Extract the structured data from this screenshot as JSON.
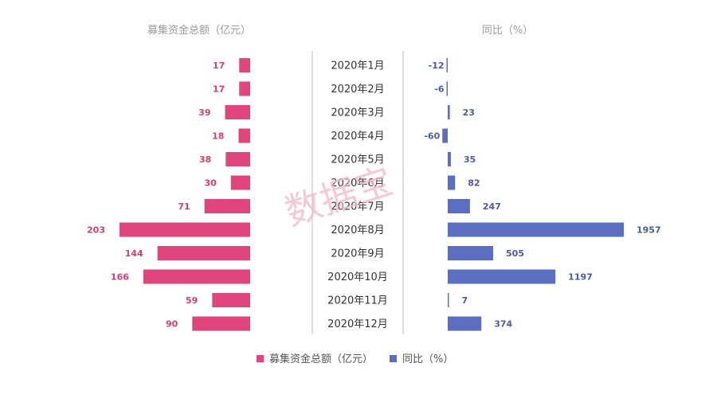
{
  "watermark": "数据宝",
  "chart_data": {
    "type": "bar",
    "orientation": "horizontal-butterfly",
    "categories": [
      "2020年1月",
      "2020年2月",
      "2020年3月",
      "2020年4月",
      "2020年5月",
      "2020年6月",
      "2020年7月",
      "2020年8月",
      "2020年9月",
      "2020年10月",
      "2020年11月",
      "2020年12月"
    ],
    "series": [
      {
        "name": "募集资金总额（亿元）",
        "color": "#e0457b",
        "values": [
          17,
          17,
          39,
          18,
          38,
          30,
          71,
          203,
          144,
          166,
          59,
          90
        ],
        "labels": [
          "17",
          "17",
          "39",
          "18",
          "38",
          "30",
          "71",
          "203",
          "144",
          "166",
          "59",
          "90"
        ]
      },
      {
        "name": "同比（%）",
        "color": "#5b6ec0",
        "values": [
          -12,
          -6,
          23,
          -60,
          35,
          82,
          247,
          1957,
          505,
          1197,
          7,
          374
        ],
        "labels": [
          "-12",
          "-6",
          "23",
          "-60",
          "35",
          "82",
          "247",
          "1957",
          "505",
          "1197",
          "7",
          "374"
        ]
      }
    ],
    "left_title": "募集资金总额（亿元）",
    "right_title": "同比（%）",
    "legend": {
      "position": "bottom",
      "items": [
        "募集资金总额（亿元）",
        "同比（%）"
      ]
    },
    "grid": false
  }
}
